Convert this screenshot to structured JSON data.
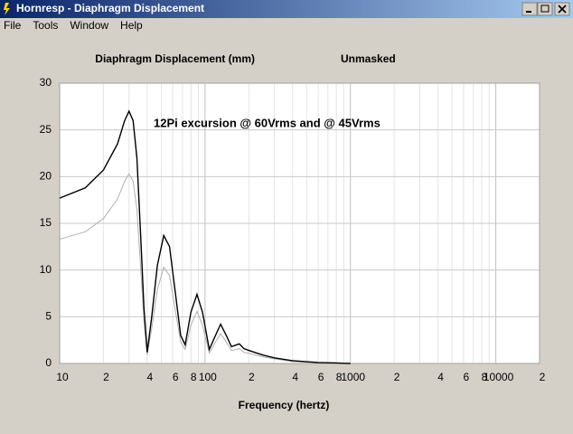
{
  "window": {
    "title": "Hornresp - Diaphragm Displacement",
    "menu": [
      "File",
      "Tools",
      "Window",
      "Help"
    ]
  },
  "chart_data": {
    "type": "line",
    "title": "Diaphragm Displacement (mm)",
    "subtitle": "Unmasked",
    "annotation": "12Pi excursion @ 60Vrms and @ 45Vrms",
    "x_label": "Frequency (hertz)",
    "x": [
      10,
      15,
      20,
      25,
      28,
      30,
      32,
      34,
      36,
      38,
      40,
      43,
      47,
      52,
      57,
      62,
      68,
      73,
      80,
      88,
      96,
      107,
      118,
      128,
      140,
      152,
      165,
      172,
      185,
      200,
      250,
      300,
      400,
      600,
      800,
      1000
    ],
    "series": [
      {
        "color": "#000000",
        "values": [
          17.7,
          18.8,
          20.7,
          23.5,
          26,
          27,
          26,
          22,
          14,
          6,
          1.2,
          5,
          10.5,
          13.7,
          12.5,
          8,
          3,
          2,
          5.5,
          7.4,
          5.5,
          1.5,
          3,
          4.2,
          3,
          1.8,
          2,
          2.1,
          1.6,
          1.4,
          0.9,
          0.6,
          0.3,
          0.1,
          0.05,
          0
        ]
      },
      {
        "color": "#b0b0b0",
        "values": [
          13.3,
          14.1,
          15.5,
          17.6,
          19.5,
          20.3,
          19.5,
          16.5,
          10.5,
          4.5,
          0.9,
          3.8,
          7.9,
          10.3,
          9.4,
          6,
          2.3,
          1.5,
          4.1,
          5.6,
          4.1,
          1.1,
          2.3,
          3.2,
          2.3,
          1.4,
          1.5,
          1.6,
          1.2,
          1.1,
          0.7,
          0.5,
          0.2,
          0.08,
          0.04,
          0
        ]
      }
    ],
    "xscale": "log",
    "xlim": [
      10,
      20000
    ],
    "xticks": [
      10,
      {
        "value": 20,
        "label": "2"
      },
      {
        "value": 40,
        "label": "4"
      },
      {
        "value": 60,
        "label": "6"
      },
      {
        "value": 80,
        "label": "8"
      },
      100,
      {
        "value": 200,
        "label": "2"
      },
      {
        "value": 400,
        "label": "4"
      },
      {
        "value": 600,
        "label": "6"
      },
      {
        "value": 800,
        "label": "8"
      },
      1000,
      {
        "value": 2000,
        "label": "2"
      },
      {
        "value": 4000,
        "label": "4"
      },
      {
        "value": 6000,
        "label": "6"
      },
      {
        "value": 8000,
        "label": "8"
      },
      10000,
      {
        "value": 20000,
        "label": "2"
      }
    ],
    "xminor": [
      30,
      50,
      70,
      90,
      300,
      500,
      700,
      900,
      3000,
      5000,
      7000,
      9000
    ],
    "ylim": [
      0,
      30
    ],
    "yticks": [
      0,
      5,
      10,
      15,
      20,
      25,
      30
    ],
    "grid": true
  }
}
